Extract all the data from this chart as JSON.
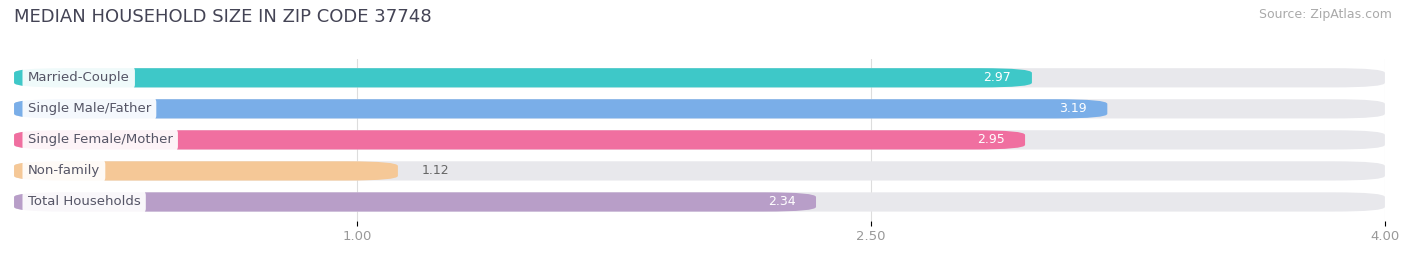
{
  "title": "MEDIAN HOUSEHOLD SIZE IN ZIP CODE 37748",
  "source": "Source: ZipAtlas.com",
  "categories": [
    "Married-Couple",
    "Single Male/Father",
    "Single Female/Mother",
    "Non-family",
    "Total Households"
  ],
  "values": [
    2.97,
    3.19,
    2.95,
    1.12,
    2.34
  ],
  "bar_colors": [
    "#3ec8c8",
    "#7aaee8",
    "#f06fa0",
    "#f5c897",
    "#b89ec8"
  ],
  "bar_bg_color": "#e8e8ec",
  "label_bg_color": "#ffffff",
  "label_text_color": "#555566",
  "value_color_inside": "#ffffff",
  "value_color_outside": "#666666",
  "xtick_color": "#999999",
  "xlim": [
    0,
    4.0
  ],
  "xticks": [
    1.0,
    2.5,
    4.0
  ],
  "title_fontsize": 13,
  "source_fontsize": 9,
  "label_fontsize": 9.5,
  "value_fontsize": 9,
  "background_color": "#ffffff",
  "bar_height": 0.62,
  "bar_gap": 0.18,
  "outside_value_threshold": 1.5,
  "grid_color": "#dddddd"
}
